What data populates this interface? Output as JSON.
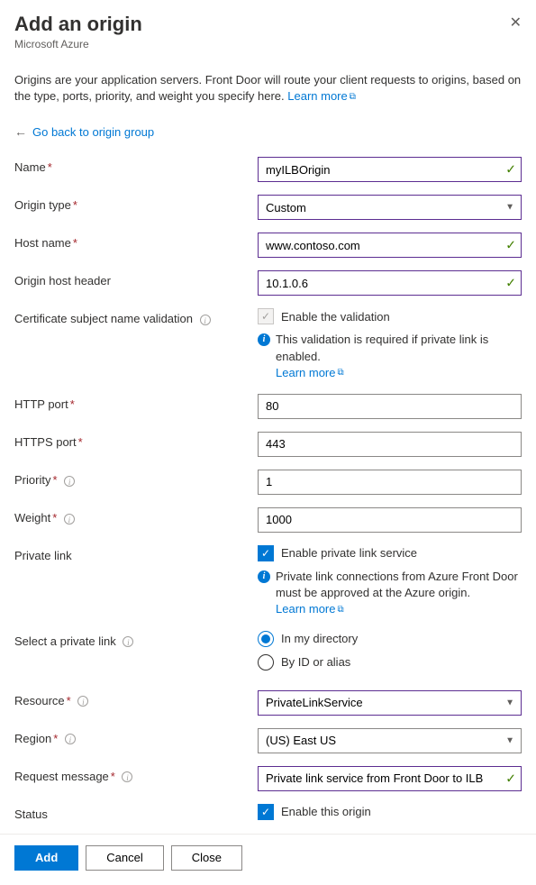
{
  "header": {
    "title": "Add an origin",
    "subtitle": "Microsoft Azure"
  },
  "intro": {
    "text": "Origins are your application servers. Front Door will route your client requests to origins, based on the type, ports, priority, and weight you specify here. ",
    "learn_more": "Learn more"
  },
  "backlink": "Go back to origin group",
  "labels": {
    "name": "Name",
    "origin_type": "Origin type",
    "host_name": "Host name",
    "origin_host_header": "Origin host header",
    "cert_validation": "Certificate subject name validation",
    "http_port": "HTTP port",
    "https_port": "HTTPS port",
    "priority": "Priority",
    "weight": "Weight",
    "private_link": "Private link",
    "select_private_link": "Select a private link",
    "resource": "Resource",
    "region": "Region",
    "request_message": "Request message",
    "status": "Status"
  },
  "values": {
    "name": "myILBOrigin",
    "origin_type": "Custom",
    "host_name": "www.contoso.com",
    "origin_host_header": "10.1.0.6",
    "http_port": "80",
    "https_port": "443",
    "priority": "1",
    "weight": "1000",
    "resource": "PrivateLinkService",
    "region": "(US) East US",
    "request_message": "Private link service from Front Door to ILB"
  },
  "checkboxes": {
    "enable_validation": "Enable the validation",
    "enable_private_link": "Enable private link service",
    "enable_origin": "Enable this origin"
  },
  "radios": {
    "in_directory": "In my directory",
    "by_id": "By ID or alias"
  },
  "info": {
    "validation": "This validation is required if private link is enabled.",
    "private_link": "Private link connections from Azure Front Door must be approved at the Azure origin.",
    "learn_more": "Learn more"
  },
  "buttons": {
    "add": "Add",
    "cancel": "Cancel",
    "close": "Close"
  },
  "colors": {
    "primary": "#0078d4",
    "required": "#a4262c",
    "valid_border": "#5c2d91",
    "check_green": "#428000"
  }
}
